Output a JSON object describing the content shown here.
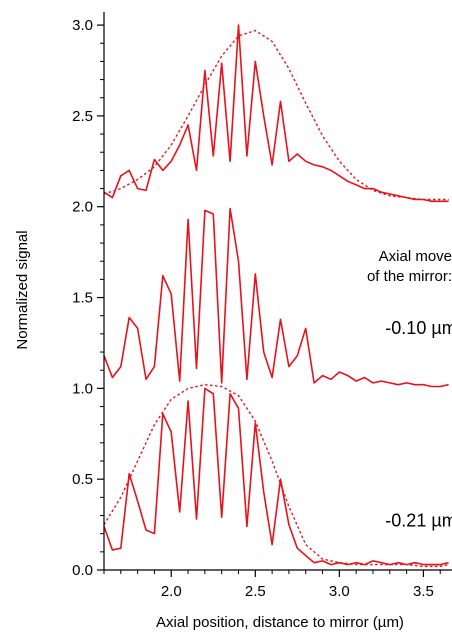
{
  "chart_data": {
    "type": "line",
    "title": "",
    "xlabel": "Axial position, distance to mirror (µm)",
    "ylabel": "Normalized signal",
    "xlim": [
      1.6,
      3.67
    ],
    "ylim": [
      0.0,
      3.05
    ],
    "x_ticks": [
      2.0,
      2.5,
      3.0,
      3.5
    ],
    "x_tick_labels": [
      "2.0",
      "2.5",
      "3.0",
      "3.5"
    ],
    "y_ticks": [
      0.0,
      0.5,
      1.0,
      1.5,
      2.0,
      2.5,
      3.0
    ],
    "y_tick_labels": [
      "0.0",
      "0.5",
      "1.0",
      "1.5",
      "2.0",
      "2.5",
      "3.0"
    ],
    "grid": false,
    "line_color": "#e8121b",
    "annotations": [
      {
        "text": "Axial move",
        "x": 3.45,
        "y": 1.7
      },
      {
        "text": "of the mirror:",
        "x": 3.45,
        "y": 1.59
      },
      {
        "text": "-0.10 µm",
        "x": 3.45,
        "y": 1.3
      },
      {
        "text": "-0.21 µm",
        "x": 3.45,
        "y": 0.24
      }
    ],
    "series": [
      {
        "style": "solid",
        "x": [
          1.6,
          1.65,
          1.7,
          1.75,
          1.8,
          1.85,
          1.9,
          1.95,
          2.0,
          2.05,
          2.1,
          2.15,
          2.2,
          2.25,
          2.3,
          2.35,
          2.4,
          2.45,
          2.5,
          2.55,
          2.6,
          2.65,
          2.7,
          2.75,
          2.8,
          2.85,
          2.9,
          2.95,
          3.0,
          3.05,
          3.1,
          3.15,
          3.2,
          3.25,
          3.3,
          3.35,
          3.4,
          3.45,
          3.5,
          3.55,
          3.6,
          3.65
        ],
        "y": [
          0.24,
          0.11,
          0.12,
          0.53,
          0.38,
          0.22,
          0.2,
          0.86,
          0.76,
          0.32,
          0.93,
          0.28,
          1.0,
          0.97,
          0.29,
          0.97,
          0.89,
          0.24,
          0.81,
          0.43,
          0.14,
          0.5,
          0.25,
          0.12,
          0.08,
          0.04,
          0.05,
          0.03,
          0.04,
          0.03,
          0.04,
          0.03,
          0.05,
          0.04,
          0.03,
          0.04,
          0.03,
          0.04,
          0.03,
          0.03,
          0.03,
          0.04
        ]
      },
      {
        "style": "solid",
        "x": [
          1.6,
          1.65,
          1.7,
          1.75,
          1.8,
          1.85,
          1.9,
          1.95,
          2.0,
          2.05,
          2.1,
          2.15,
          2.2,
          2.25,
          2.3,
          2.35,
          2.4,
          2.45,
          2.5,
          2.55,
          2.6,
          2.65,
          2.7,
          2.75,
          2.8,
          2.85,
          2.9,
          2.95,
          3.0,
          3.05,
          3.1,
          3.15,
          3.2,
          3.25,
          3.3,
          3.35,
          3.4,
          3.45,
          3.5,
          3.55,
          3.6,
          3.65
        ],
        "y": [
          1.18,
          1.06,
          1.12,
          1.39,
          1.33,
          1.05,
          1.12,
          1.62,
          1.52,
          1.04,
          1.93,
          1.11,
          1.98,
          1.96,
          1.03,
          1.99,
          1.7,
          1.05,
          1.63,
          1.2,
          1.06,
          1.38,
          1.12,
          1.18,
          1.33,
          1.03,
          1.07,
          1.05,
          1.09,
          1.07,
          1.04,
          1.06,
          1.03,
          1.04,
          1.03,
          1.02,
          1.03,
          1.02,
          1.02,
          1.01,
          1.01,
          1.02
        ]
      },
      {
        "style": "solid",
        "x": [
          1.6,
          1.65,
          1.7,
          1.75,
          1.8,
          1.85,
          1.9,
          1.95,
          2.0,
          2.05,
          2.1,
          2.15,
          2.2,
          2.25,
          2.3,
          2.35,
          2.4,
          2.45,
          2.5,
          2.55,
          2.6,
          2.65,
          2.7,
          2.75,
          2.8,
          2.85,
          2.9,
          2.95,
          3.0,
          3.05,
          3.1,
          3.15,
          3.2,
          3.25,
          3.3,
          3.35,
          3.4,
          3.45,
          3.5,
          3.55,
          3.6,
          3.65
        ],
        "y": [
          2.08,
          2.05,
          2.17,
          2.2,
          2.1,
          2.09,
          2.26,
          2.2,
          2.25,
          2.34,
          2.45,
          2.2,
          2.75,
          2.28,
          2.79,
          2.25,
          3.0,
          2.28,
          2.8,
          2.5,
          2.23,
          2.58,
          2.25,
          2.29,
          2.25,
          2.23,
          2.22,
          2.2,
          2.17,
          2.14,
          2.12,
          2.1,
          2.1,
          2.08,
          2.07,
          2.06,
          2.05,
          2.04,
          2.04,
          2.03,
          2.03,
          2.03
        ]
      },
      {
        "style": "dashed",
        "x": [
          1.6,
          1.7,
          1.8,
          1.9,
          2.0,
          2.1,
          2.2,
          2.3,
          2.4,
          2.5,
          2.6,
          2.7,
          2.8,
          2.9,
          3.0,
          3.1,
          3.2,
          3.3,
          3.4,
          3.5,
          3.6,
          3.65
        ],
        "y": [
          2.07,
          2.1,
          2.15,
          2.22,
          2.34,
          2.5,
          2.67,
          2.83,
          2.94,
          2.97,
          2.91,
          2.76,
          2.57,
          2.39,
          2.25,
          2.15,
          2.09,
          2.06,
          2.05,
          2.04,
          2.04,
          2.04
        ]
      },
      {
        "style": "dashed",
        "x": [
          1.6,
          1.7,
          1.8,
          1.9,
          2.0,
          2.1,
          2.2,
          2.3,
          2.4,
          2.5,
          2.6,
          2.7,
          2.8,
          2.9,
          3.0,
          3.1,
          3.2,
          3.3,
          3.4,
          3.5,
          3.6,
          3.65
        ],
        "y": [
          0.25,
          0.4,
          0.6,
          0.8,
          0.94,
          1.0,
          1.02,
          1.01,
          0.96,
          0.82,
          0.6,
          0.35,
          0.14,
          0.06,
          0.04,
          0.03,
          0.03,
          0.03,
          0.03,
          0.02,
          0.02,
          0.03
        ]
      }
    ]
  }
}
